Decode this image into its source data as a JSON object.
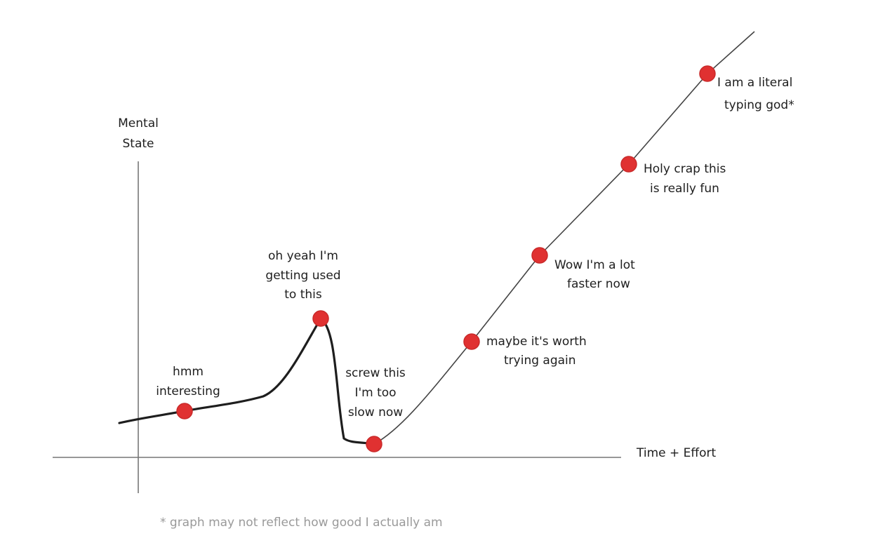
{
  "axes": {
    "y_label": [
      "Mental",
      "State"
    ],
    "x_label": "Time + Effort"
  },
  "points": [
    {
      "label": [
        "hmm",
        "interesting"
      ]
    },
    {
      "label": [
        "oh yeah I'm",
        "getting used",
        "to this"
      ]
    },
    {
      "label": [
        "screw this",
        "I'm too",
        "slow now"
      ]
    },
    {
      "label": [
        "maybe it's worth",
        "trying again"
      ]
    },
    {
      "label": [
        "Wow I'm a lot",
        "faster now"
      ]
    },
    {
      "label": [
        "Holy crap this",
        "is really fun"
      ]
    },
    {
      "label": [
        "I am a literal",
        "typing god*"
      ]
    }
  ],
  "footnote": "* graph may not reflect how good I actually am"
}
